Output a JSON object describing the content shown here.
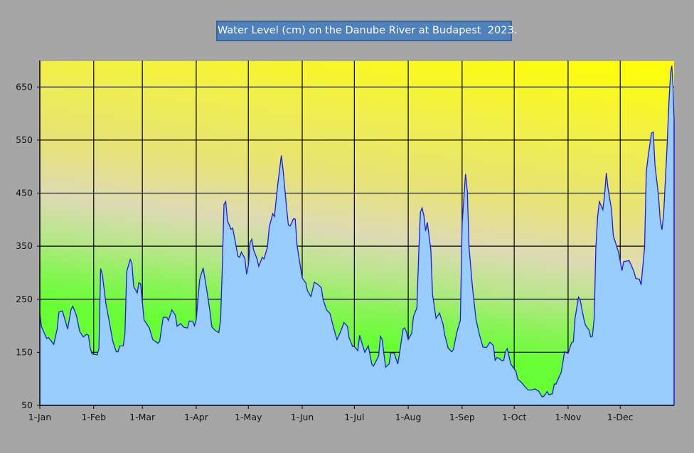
{
  "chart_data": {
    "type": "area",
    "title": "Water Level (cm) on the Danube River at Budapest  2023.",
    "xlabel": "",
    "ylabel": "",
    "xlim": [
      0,
      365
    ],
    "ylim": [
      50,
      700
    ],
    "grid": true,
    "legend": "none",
    "y_ticks": [
      "50",
      "150",
      "250",
      "350",
      "450",
      "550",
      "650"
    ],
    "y_tick_values": [
      50,
      150,
      250,
      350,
      450,
      550,
      650
    ],
    "x_ticks": [
      "1-Jan",
      "1-Feb",
      "1-Mar",
      "1-Apr",
      "1-May",
      "1-Jun",
      "1-Jul",
      "1-Aug",
      "1-Sep",
      "1-Oct",
      "1-Nov",
      "1-Dec"
    ],
    "x_tick_days": [
      0,
      31,
      59,
      90,
      120,
      151,
      181,
      212,
      243,
      273,
      304,
      334
    ],
    "colors": {
      "fill": "#99ccff",
      "line": "#1a1aee",
      "background": "#a6a6a6",
      "title_bg": "#4f81bd"
    },
    "series": [
      {
        "name": "Water level (cm)",
        "x_unit": "day of year",
        "points": [
          [
            0,
            222
          ],
          [
            1,
            198
          ],
          [
            4,
            176
          ],
          [
            5,
            178
          ],
          [
            8,
            165
          ],
          [
            10,
            194
          ],
          [
            11,
            226
          ],
          [
            13,
            228
          ],
          [
            16,
            194
          ],
          [
            18,
            231
          ],
          [
            19,
            237
          ],
          [
            21,
            220
          ],
          [
            23,
            189
          ],
          [
            25,
            179
          ],
          [
            27,
            184
          ],
          [
            28,
            182
          ],
          [
            29,
            158
          ],
          [
            30,
            147
          ],
          [
            33,
            145
          ],
          [
            34,
            157
          ],
          [
            35,
            308
          ],
          [
            36,
            296
          ],
          [
            38,
            242
          ],
          [
            40,
            207
          ],
          [
            42,
            171
          ],
          [
            44,
            151
          ],
          [
            45,
            151
          ],
          [
            46,
            162
          ],
          [
            48,
            162
          ],
          [
            49,
            185
          ],
          [
            50,
            302
          ],
          [
            52,
            325
          ],
          [
            53,
            318
          ],
          [
            54,
            274
          ],
          [
            56,
            262
          ],
          [
            57,
            281
          ],
          [
            58,
            279
          ],
          [
            60,
            211
          ],
          [
            63,
            196
          ],
          [
            65,
            174
          ],
          [
            68,
            167
          ],
          [
            69,
            171
          ],
          [
            71,
            216
          ],
          [
            73,
            216
          ],
          [
            74,
            210
          ],
          [
            76,
            230
          ],
          [
            78,
            220
          ],
          [
            79,
            199
          ],
          [
            81,
            204
          ],
          [
            83,
            197
          ],
          [
            85,
            196
          ],
          [
            86,
            209
          ],
          [
            88,
            208
          ],
          [
            89,
            200
          ],
          [
            90,
            211
          ],
          [
            92,
            287
          ],
          [
            94,
            309
          ],
          [
            96,
            269
          ],
          [
            98,
            225
          ],
          [
            99,
            198
          ],
          [
            101,
            191
          ],
          [
            103,
            187
          ],
          [
            104,
            211
          ],
          [
            105,
            309
          ],
          [
            106,
            429
          ],
          [
            107,
            434
          ],
          [
            108,
            398
          ],
          [
            110,
            382
          ],
          [
            111,
            384
          ],
          [
            113,
            349
          ],
          [
            114,
            331
          ],
          [
            115,
            329
          ],
          [
            116,
            339
          ],
          [
            118,
            327
          ],
          [
            119,
            297
          ],
          [
            120,
            314
          ],
          [
            121,
            357
          ],
          [
            122,
            363
          ],
          [
            123,
            343
          ],
          [
            125,
            326
          ],
          [
            126,
            312
          ],
          [
            128,
            329
          ],
          [
            129,
            326
          ],
          [
            131,
            348
          ],
          [
            132,
            386
          ],
          [
            134,
            411
          ],
          [
            135,
            406
          ],
          [
            137,
            468
          ],
          [
            139,
            521
          ],
          [
            140,
            494
          ],
          [
            142,
            423
          ],
          [
            143,
            390
          ],
          [
            144,
            388
          ],
          [
            146,
            402
          ],
          [
            147,
            401
          ],
          [
            148,
            352
          ],
          [
            151,
            290
          ],
          [
            153,
            281
          ],
          [
            154,
            266
          ],
          [
            156,
            255
          ],
          [
            158,
            282
          ],
          [
            159,
            280
          ],
          [
            160,
            278
          ],
          [
            162,
            272
          ],
          [
            163,
            250
          ],
          [
            165,
            230
          ],
          [
            167,
            223
          ],
          [
            169,
            197
          ],
          [
            171,
            174
          ],
          [
            173,
            188
          ],
          [
            175,
            206
          ],
          [
            177,
            199
          ],
          [
            178,
            177
          ],
          [
            180,
            161
          ],
          [
            181,
            161
          ],
          [
            183,
            153
          ],
          [
            184,
            182
          ],
          [
            187,
            150
          ],
          [
            189,
            162
          ],
          [
            191,
            128
          ],
          [
            192,
            124
          ],
          [
            195,
            143
          ],
          [
            196,
            180
          ],
          [
            197,
            174
          ],
          [
            199,
            122
          ],
          [
            201,
            128
          ],
          [
            202,
            149
          ],
          [
            204,
            148
          ],
          [
            206,
            128
          ],
          [
            207,
            148
          ],
          [
            209,
            194
          ],
          [
            210,
            196
          ],
          [
            211,
            188
          ],
          [
            212,
            174
          ],
          [
            214,
            186
          ],
          [
            215,
            217
          ],
          [
            217,
            234
          ],
          [
            218,
            334
          ],
          [
            219,
            414
          ],
          [
            220,
            422
          ],
          [
            221,
            408
          ],
          [
            222,
            379
          ],
          [
            223,
            395
          ],
          [
            225,
            343
          ],
          [
            226,
            259
          ],
          [
            228,
            214
          ],
          [
            230,
            224
          ],
          [
            232,
            203
          ],
          [
            233,
            183
          ],
          [
            235,
            158
          ],
          [
            237,
            151
          ],
          [
            238,
            155
          ],
          [
            240,
            188
          ],
          [
            242,
            210
          ],
          [
            243,
            392
          ],
          [
            245,
            486
          ],
          [
            246,
            454
          ],
          [
            247,
            348
          ],
          [
            249,
            272
          ],
          [
            251,
            212
          ],
          [
            253,
            183
          ],
          [
            255,
            160
          ],
          [
            257,
            159
          ],
          [
            259,
            169
          ],
          [
            261,
            163
          ],
          [
            262,
            135
          ],
          [
            263,
            140
          ],
          [
            264,
            139
          ],
          [
            266,
            134
          ],
          [
            267,
            135
          ],
          [
            268,
            152
          ],
          [
            269,
            157
          ],
          [
            271,
            128
          ],
          [
            274,
            114
          ],
          [
            275,
            99
          ],
          [
            277,
            94
          ],
          [
            279,
            86
          ],
          [
            281,
            79
          ],
          [
            283,
            79
          ],
          [
            285,
            81
          ],
          [
            287,
            77
          ],
          [
            288,
            72
          ],
          [
            289,
            66
          ],
          [
            290,
            67
          ],
          [
            292,
            76
          ],
          [
            293,
            70
          ],
          [
            295,
            72
          ],
          [
            296,
            90
          ],
          [
            297,
            90
          ],
          [
            300,
            112
          ],
          [
            302,
            151
          ],
          [
            304,
            148
          ],
          [
            306,
            168
          ],
          [
            307,
            170
          ],
          [
            308,
            214
          ],
          [
            310,
            254
          ],
          [
            311,
            248
          ],
          [
            313,
            214
          ],
          [
            314,
            201
          ],
          [
            316,
            192
          ],
          [
            317,
            179
          ],
          [
            318,
            180
          ],
          [
            319,
            214
          ],
          [
            320,
            348
          ],
          [
            321,
            406
          ],
          [
            322,
            434
          ],
          [
            324,
            419
          ],
          [
            325,
            446
          ],
          [
            326,
            488
          ],
          [
            327,
            459
          ],
          [
            329,
            419
          ],
          [
            330,
            370
          ],
          [
            333,
            339
          ],
          [
            335,
            304
          ],
          [
            336,
            321
          ],
          [
            338,
            322
          ],
          [
            339,
            323
          ],
          [
            340,
            317
          ],
          [
            342,
            301
          ],
          [
            343,
            289
          ],
          [
            345,
            288
          ],
          [
            346,
            277
          ],
          [
            348,
            348
          ],
          [
            349,
            490
          ],
          [
            350,
            517
          ],
          [
            352,
            563
          ],
          [
            353,
            565
          ],
          [
            354,
            503
          ],
          [
            356,
            446
          ],
          [
            357,
            401
          ],
          [
            358,
            381
          ],
          [
            359,
            410
          ],
          [
            361,
            540
          ],
          [
            362,
            620
          ],
          [
            363,
            677
          ],
          [
            363.7,
            690
          ],
          [
            364.4,
            650
          ],
          [
            365,
            588
          ]
        ]
      }
    ]
  }
}
